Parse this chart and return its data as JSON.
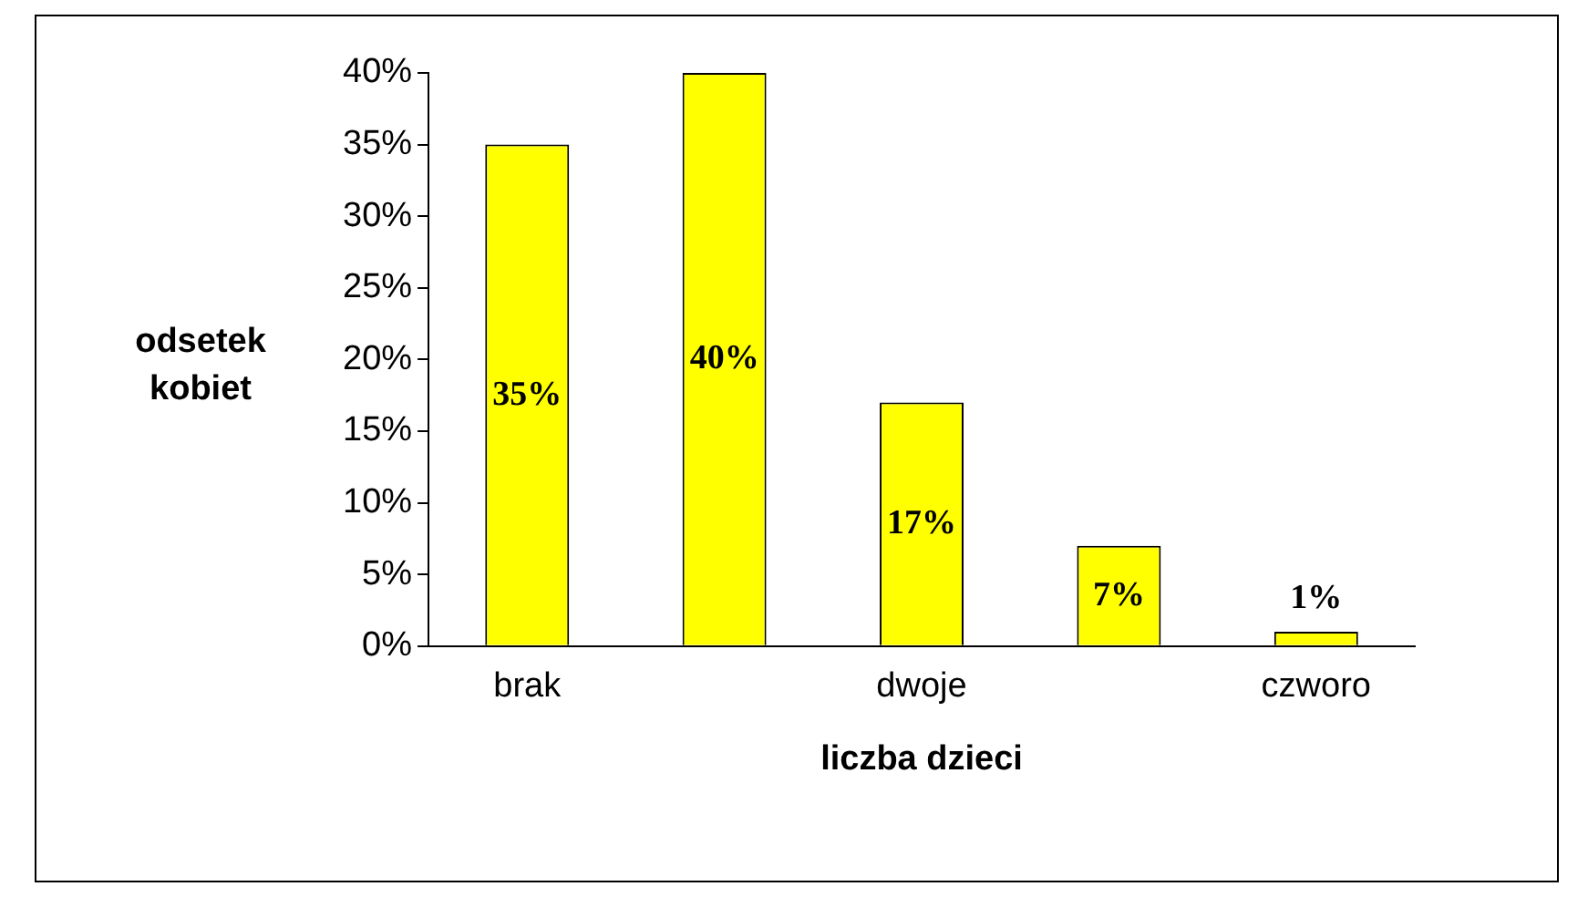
{
  "chart_data": {
    "type": "bar",
    "xlabel": "liczba dzieci",
    "ylabel": "odsetek kobiet",
    "categories": [
      "brak",
      null,
      "dwoje",
      null,
      "czworo"
    ],
    "values": [
      35,
      40,
      17,
      7,
      1
    ],
    "color": "#ffff00",
    "value_labels": [
      "35%",
      "40%",
      "17%",
      "7%",
      "1%"
    ],
    "ylim": [
      0,
      40
    ],
    "yticks": [
      {
        "value": 0,
        "label": "0%"
      },
      {
        "value": 5,
        "label": "5%"
      },
      {
        "value": 10,
        "label": "10%"
      },
      {
        "value": 15,
        "label": "15%"
      },
      {
        "value": 20,
        "label": "20%"
      },
      {
        "value": 25,
        "label": "25%"
      },
      {
        "value": 30,
        "label": "30%"
      },
      {
        "value": 35,
        "label": "35%"
      },
      {
        "value": 40,
        "label": "40%"
      }
    ],
    "grid": false,
    "legend": false
  }
}
